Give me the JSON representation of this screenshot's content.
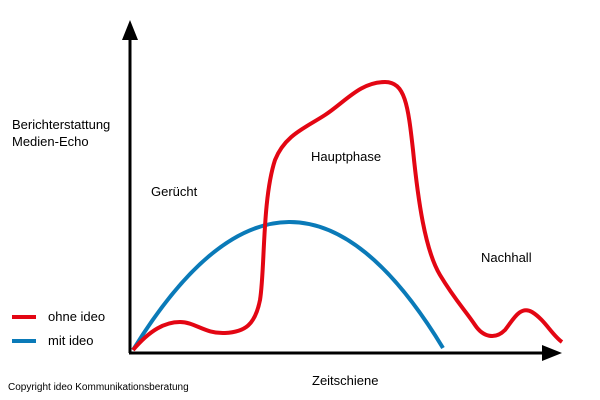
{
  "y_axis_label": [
    "Berichterstattung",
    "Medien-Echo"
  ],
  "x_axis_label": "Zeitschiene",
  "phases": [
    "Gerücht",
    "Hauptphase",
    "Nachhall"
  ],
  "legend": [
    {
      "name": "ohne ideo",
      "color": "#e30613"
    },
    {
      "name": "mit ideo",
      "color": "#0a7ab8"
    }
  ],
  "copyright": "Copyright ideo Kommunikationsberatung"
}
